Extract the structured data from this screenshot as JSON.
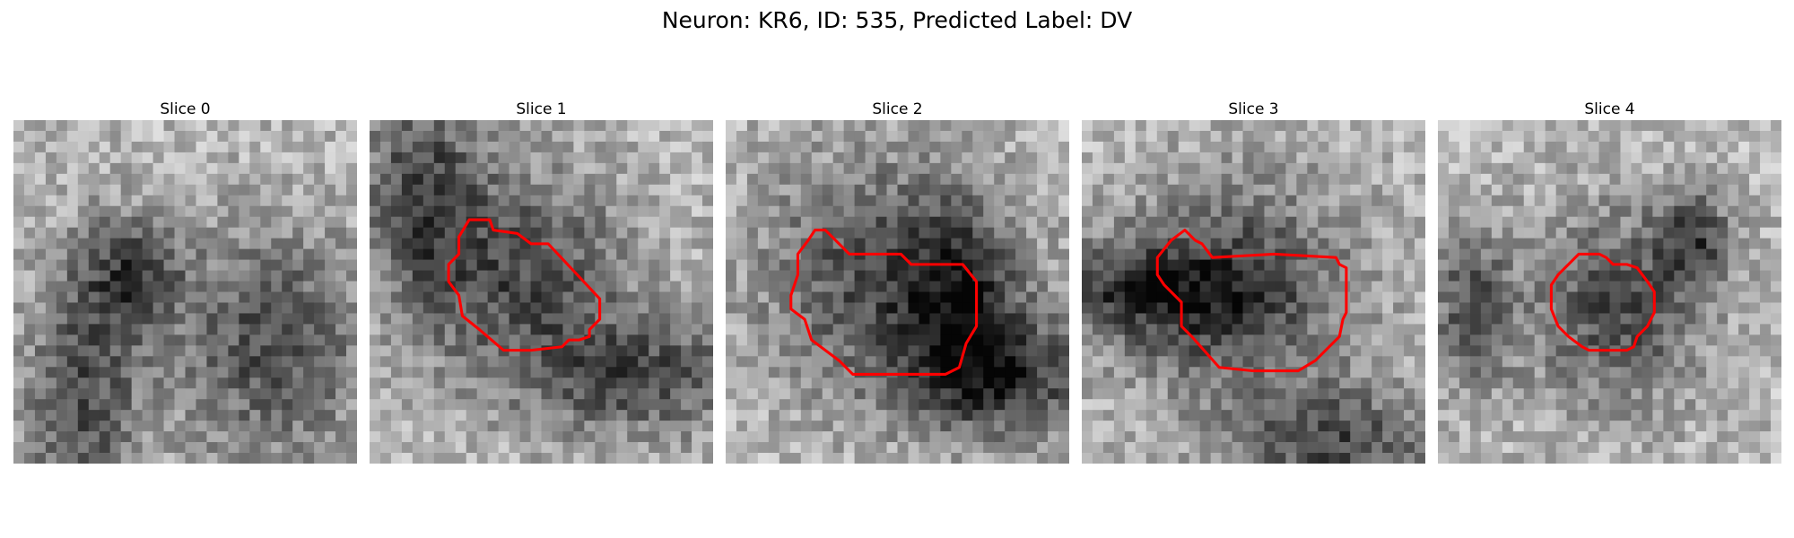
{
  "figure": {
    "title": "Neuron: KR6, ID: 535, Predicted Label: DV"
  },
  "style": {
    "contour_color": "#ff0000"
  },
  "slices": [
    {
      "label": "Slice 0",
      "has_contour": false,
      "blobs": [
        [
          0.2,
          0.8,
          0.3,
          0.7
        ],
        [
          0.75,
          0.65,
          0.5,
          0.6
        ],
        [
          0.35,
          0.45,
          0.25,
          0.3
        ]
      ],
      "contour": []
    },
    {
      "label": "Slice 1",
      "has_contour": true,
      "blobs": [
        [
          0.45,
          0.45,
          0.55,
          0.55
        ],
        [
          0.15,
          0.2,
          0.3,
          0.6
        ],
        [
          0.8,
          0.75,
          0.6,
          0.3
        ]
      ],
      "contour": [
        [
          0.29,
          0.29
        ],
        [
          0.35,
          0.29
        ],
        [
          0.36,
          0.32
        ],
        [
          0.43,
          0.33
        ],
        [
          0.47,
          0.36
        ],
        [
          0.52,
          0.36
        ],
        [
          0.67,
          0.52
        ],
        [
          0.67,
          0.58
        ],
        [
          0.64,
          0.61
        ],
        [
          0.64,
          0.63
        ],
        [
          0.61,
          0.64
        ],
        [
          0.58,
          0.64
        ],
        [
          0.56,
          0.66
        ],
        [
          0.47,
          0.67
        ],
        [
          0.39,
          0.67
        ],
        [
          0.32,
          0.61
        ],
        [
          0.27,
          0.57
        ],
        [
          0.26,
          0.51
        ],
        [
          0.23,
          0.47
        ],
        [
          0.23,
          0.42
        ],
        [
          0.26,
          0.39
        ],
        [
          0.26,
          0.34
        ]
      ]
    },
    {
      "label": "Slice 2",
      "has_contour": true,
      "blobs": [
        [
          0.45,
          0.45,
          0.62,
          0.6
        ],
        [
          0.7,
          0.55,
          0.3,
          0.5
        ],
        [
          0.85,
          0.75,
          0.6,
          0.3
        ]
      ],
      "contour": [
        [
          0.26,
          0.32
        ],
        [
          0.29,
          0.32
        ],
        [
          0.34,
          0.37
        ],
        [
          0.36,
          0.39
        ],
        [
          0.51,
          0.39
        ],
        [
          0.54,
          0.42
        ],
        [
          0.69,
          0.42
        ],
        [
          0.73,
          0.47
        ],
        [
          0.73,
          0.6
        ],
        [
          0.7,
          0.65
        ],
        [
          0.68,
          0.72
        ],
        [
          0.64,
          0.74
        ],
        [
          0.61,
          0.74
        ],
        [
          0.37,
          0.74
        ],
        [
          0.33,
          0.7
        ],
        [
          0.25,
          0.64
        ],
        [
          0.23,
          0.58
        ],
        [
          0.19,
          0.55
        ],
        [
          0.19,
          0.51
        ],
        [
          0.21,
          0.45
        ],
        [
          0.21,
          0.39
        ],
        [
          0.24,
          0.35
        ]
      ]
    },
    {
      "label": "Slice 3",
      "has_contour": true,
      "blobs": [
        [
          0.45,
          0.5,
          0.6,
          0.6
        ],
        [
          0.75,
          0.95,
          0.5,
          0.3
        ],
        [
          0.15,
          0.5,
          0.6,
          0.25
        ]
      ],
      "contour": [
        [
          0.26,
          0.35
        ],
        [
          0.3,
          0.32
        ],
        [
          0.31,
          0.33
        ],
        [
          0.33,
          0.35
        ],
        [
          0.35,
          0.36
        ],
        [
          0.38,
          0.4
        ],
        [
          0.56,
          0.39
        ],
        [
          0.74,
          0.4
        ],
        [
          0.75,
          0.42
        ],
        [
          0.77,
          0.43
        ],
        [
          0.77,
          0.56
        ],
        [
          0.76,
          0.58
        ],
        [
          0.75,
          0.63
        ],
        [
          0.68,
          0.7
        ],
        [
          0.63,
          0.73
        ],
        [
          0.56,
          0.73
        ],
        [
          0.5,
          0.73
        ],
        [
          0.4,
          0.72
        ],
        [
          0.32,
          0.63
        ],
        [
          0.29,
          0.6
        ],
        [
          0.29,
          0.53
        ],
        [
          0.24,
          0.48
        ],
        [
          0.22,
          0.45
        ],
        [
          0.22,
          0.4
        ]
      ]
    },
    {
      "label": "Slice 4",
      "has_contour": true,
      "blobs": [
        [
          0.52,
          0.55,
          0.45,
          0.5
        ],
        [
          0.1,
          0.55,
          0.2,
          0.4
        ],
        [
          0.75,
          0.35,
          0.2,
          0.25
        ]
      ],
      "contour": [
        [
          0.38,
          0.42
        ],
        [
          0.41,
          0.39
        ],
        [
          0.47,
          0.39
        ],
        [
          0.49,
          0.4
        ],
        [
          0.51,
          0.42
        ],
        [
          0.55,
          0.42
        ],
        [
          0.58,
          0.43
        ],
        [
          0.61,
          0.47
        ],
        [
          0.63,
          0.5
        ],
        [
          0.63,
          0.56
        ],
        [
          0.61,
          0.6
        ],
        [
          0.58,
          0.63
        ],
        [
          0.57,
          0.66
        ],
        [
          0.55,
          0.67
        ],
        [
          0.44,
          0.67
        ],
        [
          0.42,
          0.66
        ],
        [
          0.38,
          0.63
        ],
        [
          0.35,
          0.6
        ],
        [
          0.33,
          0.55
        ],
        [
          0.33,
          0.48
        ],
        [
          0.35,
          0.45
        ]
      ]
    }
  ]
}
